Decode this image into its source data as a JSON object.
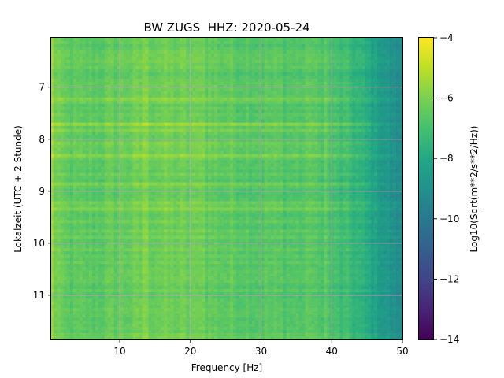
{
  "chart_data": {
    "type": "heatmap",
    "title": "BW ZUGS  HHZ: 2020-05-24",
    "xlabel": "Frequency [Hz]",
    "ylabel": "Lokalzeit (UTC + 2 Stunde)",
    "xlim": [
      0.3,
      50
    ],
    "ylim": [
      11.85,
      6.05
    ],
    "y_inverted": true,
    "x_ticks": [
      10,
      20,
      30,
      40,
      50
    ],
    "y_ticks": [
      7,
      8,
      9,
      10,
      11
    ],
    "grid": true,
    "colormap": "viridis",
    "colorbar": {
      "label": "Log10(Sqrt(m**2/s**2/Hz))",
      "range": [
        -14,
        -4
      ],
      "ticks": [
        -4,
        -6,
        -8,
        -10,
        -12,
        -14
      ],
      "tick_labels": [
        "−4",
        "−6",
        "−8",
        "−10",
        "−12",
        "−14"
      ]
    },
    "value_profile_by_frequency": {
      "frequency_hz": [
        0.3,
        1,
        5,
        10,
        15,
        20,
        25,
        30,
        35,
        38,
        40,
        42,
        44,
        46,
        48,
        50
      ],
      "typical_value": [
        -6.0,
        -6.5,
        -6.6,
        -6.4,
        -6.2,
        -6.3,
        -6.5,
        -6.6,
        -6.7,
        -6.8,
        -7.0,
        -7.2,
        -7.6,
        -8.2,
        -8.8,
        -9.3
      ]
    },
    "bright_bands": [
      {
        "time": 7.25,
        "strength": 0.5
      },
      {
        "time": 7.72,
        "strength": 0.9
      },
      {
        "time": 7.85,
        "strength": 0.7
      },
      {
        "time": 8.05,
        "strength": 0.6
      },
      {
        "time": 8.3,
        "strength": 0.7
      },
      {
        "time": 8.88,
        "strength": 0.6
      },
      {
        "time": 9.2,
        "strength": 0.4
      },
      {
        "time": 9.35,
        "strength": 0.5
      }
    ],
    "bright_lines_hz": [
      0.5,
      1.2,
      13.5,
      21.5,
      37.0,
      39.0
    ]
  }
}
